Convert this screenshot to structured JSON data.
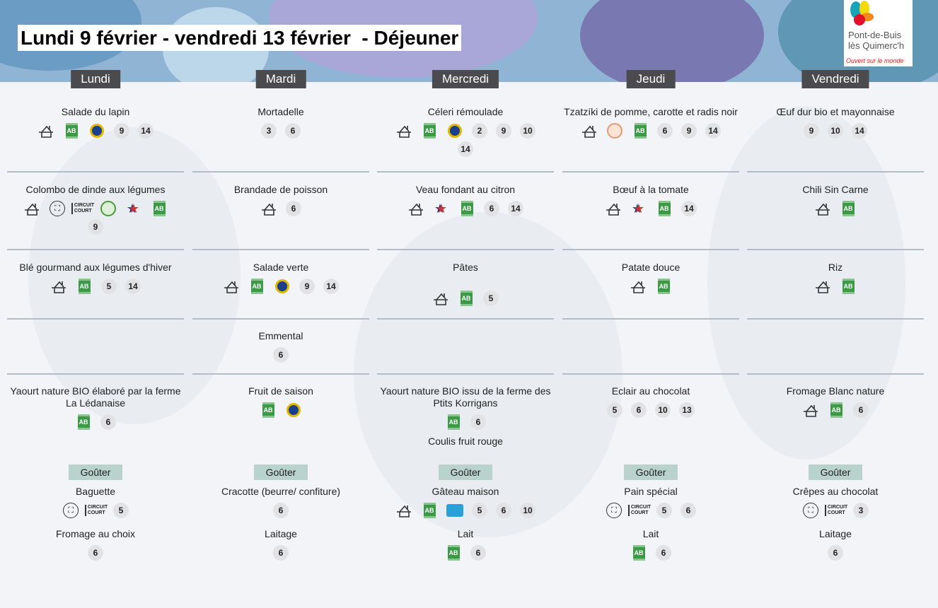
{
  "header": {
    "title": "Lundi 9 février - vendredi 13 février  - Déjeuner"
  },
  "logo": {
    "line1": "Pont-de-Buis",
    "line2": "lès Quimerc'h",
    "tagline": "Ouvert sur le monde"
  },
  "gouter_label": "Goûter",
  "colors": {
    "day_header": "#4b4b4e",
    "gouter_tag": "#b9d3cc",
    "bio": "#3a9a45",
    "badge": "#e2e2e4"
  },
  "days": [
    {
      "label": "Lundi",
      "rows": [
        [
          {
            "name": "Salade du lapin",
            "icons": [
              "fait-maison",
              "ab",
              "igp",
              "9",
              "14"
            ]
          }
        ],
        [
          {
            "name": "Colombo de dinde aux légumes",
            "icons": [
              "fait-maison",
              "local",
              "circuit-court",
              "eco",
              "viande-francaise",
              "ab",
              "9"
            ]
          }
        ],
        [
          {
            "name": "Blé gourmand aux légumes d'hiver",
            "icons": [
              "fait-maison",
              "ab",
              "5",
              "14"
            ]
          }
        ],
        [],
        [
          {
            "name": "Yaourt nature BIO élaboré par la ferme La Lédanaise",
            "icons": [
              "ab",
              "6"
            ]
          }
        ]
      ],
      "gouter": [
        {
          "name": "Baguette",
          "icons": [
            "local",
            "circuit-court",
            "5"
          ]
        },
        {
          "name": "Fromage au choix",
          "icons": [
            "6"
          ]
        }
      ]
    },
    {
      "label": "Mardi",
      "rows": [
        [
          {
            "name": "Mortadelle",
            "icons": [
              "3",
              "6"
            ]
          }
        ],
        [
          {
            "name": "Brandade de poisson",
            "icons": [
              "fait-maison",
              "6"
            ]
          }
        ],
        [
          {
            "name": "Salade verte",
            "icons": [
              "fait-maison",
              "ab",
              "igp",
              "9",
              "14"
            ]
          }
        ],
        [
          {
            "name": "Emmental",
            "icons": [
              "6"
            ]
          }
        ],
        [
          {
            "name": "Fruit de saison",
            "icons": [
              "ab",
              "igp"
            ]
          }
        ]
      ],
      "gouter": [
        {
          "name": "Cracotte (beurre/ confiture)",
          "icons": [
            "6"
          ]
        },
        {
          "name": "Laitage",
          "icons": [
            "6"
          ]
        }
      ]
    },
    {
      "label": "Mercredi",
      "rows": [
        [
          {
            "name": "Céleri  rémoulade",
            "icons": [
              "fait-maison",
              "ab",
              "igp",
              "2",
              "9",
              "10",
              "14"
            ]
          }
        ],
        [
          {
            "name": "Veau fondant au citron",
            "icons": [
              "fait-maison",
              "viande-francaise",
              "ab",
              "6",
              "14"
            ]
          }
        ],
        [
          {
            "name": "Pâtes",
            "icons": [
              "fait-maison",
              "ab",
              "5"
            ]
          }
        ],
        [],
        [
          {
            "name": "Yaourt nature BIO issu de la ferme des Ptits Korrigans",
            "icons": [
              "ab",
              "6"
            ]
          },
          {
            "name": "Coulis fruit rouge",
            "icons": []
          }
        ]
      ],
      "gouter": [
        {
          "name": "Gâteau maison",
          "icons": [
            "fait-maison",
            "ab",
            "bleu-blanc-coeur",
            "5",
            "6",
            "10"
          ]
        },
        {
          "name": "Lait",
          "icons": [
            "ab",
            "6"
          ]
        }
      ]
    },
    {
      "label": "Jeudi",
      "rows": [
        [
          {
            "name": "Tzatzíki de pomme, carotte et radis noir",
            "icons": [
              "fait-maison",
              "peche-durable",
              "ab",
              "6",
              "9",
              "14"
            ]
          }
        ],
        [
          {
            "name": "Bœuf à la tomate",
            "icons": [
              "fait-maison",
              "viande-francaise",
              "ab",
              "14"
            ]
          }
        ],
        [
          {
            "name": "Patate douce",
            "icons": [
              "fait-maison",
              "ab"
            ]
          }
        ],
        [],
        [
          {
            "name": "Eclair au chocolat",
            "icons": [
              "5",
              "6",
              "10",
              "13"
            ]
          }
        ]
      ],
      "gouter": [
        {
          "name": "Pain spécial",
          "icons": [
            "local",
            "circuit-court",
            "5",
            "6"
          ]
        },
        {
          "name": "Lait",
          "icons": [
            "ab",
            "6"
          ]
        }
      ]
    },
    {
      "label": "Vendredi",
      "rows": [
        [
          {
            "name": "Œuf dur bio et mayonnaise",
            "icons": [
              "9",
              "10",
              "14"
            ]
          }
        ],
        [
          {
            "name": "Chili Sin Carne",
            "icons": [
              "fait-maison",
              "ab"
            ]
          }
        ],
        [
          {
            "name": "Riz",
            "icons": [
              "fait-maison",
              "ab"
            ]
          }
        ],
        [],
        [
          {
            "name": "Fromage Blanc nature",
            "icons": [
              "fait-maison",
              "ab",
              "6"
            ]
          }
        ]
      ],
      "gouter": [
        {
          "name": "Crêpes au chocolat",
          "icons": [
            "local",
            "circuit-court",
            "3"
          ]
        },
        {
          "name": "Laitage",
          "icons": [
            "6"
          ]
        }
      ]
    }
  ]
}
